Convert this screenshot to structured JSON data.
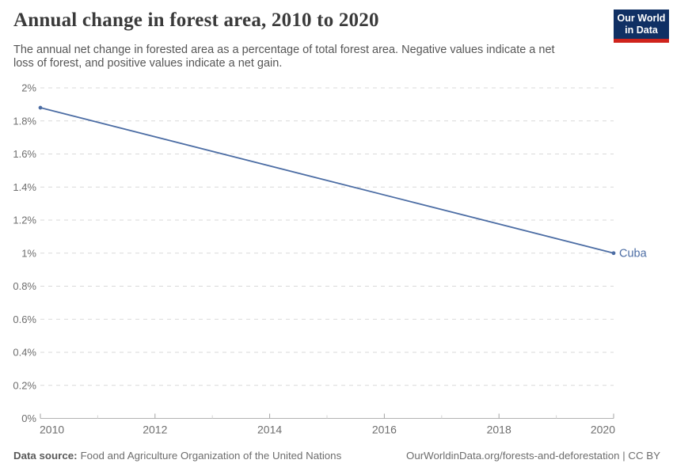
{
  "header": {
    "title": "Annual change in forest area, 2010 to 2020",
    "subtitle_lines": [
      "The annual net change in forested area as a percentage of total forest area. Negative values indicate a net",
      "loss of forest, and positive values indicate a net gain."
    ],
    "logo_lines": [
      "Our World",
      "in Data"
    ],
    "logo_colors": {
      "background": "#103064",
      "bar": "#cf231c",
      "text": "#ffffff"
    }
  },
  "footer": {
    "data_source_label": "Data source:",
    "data_source_value": "Food and Agriculture Organization of the United Nations",
    "credit": "OurWorldinData.org/forests-and-deforestation | CC BY"
  },
  "chart_data": {
    "type": "line",
    "title": "Annual change in forest area, 2010 to 2020",
    "xlabel": "",
    "ylabel": "",
    "unit": "%",
    "xlim": [
      2010,
      2020
    ],
    "ylim": [
      0,
      2
    ],
    "grid": "horizontal-dashed",
    "legend_position": "line-end-label",
    "x_ticks": [
      {
        "value": 2010,
        "label": "2010"
      },
      {
        "value": 2012,
        "label": "2012"
      },
      {
        "value": 2014,
        "label": "2014"
      },
      {
        "value": 2016,
        "label": "2016"
      },
      {
        "value": 2018,
        "label": "2018"
      },
      {
        "value": 2020,
        "label": "2020"
      }
    ],
    "minor_x_ticks": [
      2011,
      2013,
      2015,
      2017,
      2019
    ],
    "y_ticks": [
      {
        "value": 0,
        "label": "0%"
      },
      {
        "value": 0.2,
        "label": "0.2%"
      },
      {
        "value": 0.4,
        "label": "0.4%"
      },
      {
        "value": 0.6,
        "label": "0.6%"
      },
      {
        "value": 0.8,
        "label": "0.8%"
      },
      {
        "value": 1,
        "label": "1%"
      },
      {
        "value": 1.2,
        "label": "1.2%"
      },
      {
        "value": 1.4,
        "label": "1.4%"
      },
      {
        "value": 1.6,
        "label": "1.6%"
      },
      {
        "value": 1.8,
        "label": "1.8%"
      },
      {
        "value": 2,
        "label": "2%"
      }
    ],
    "colors": {
      "gridline": "#d9d9d9",
      "axis_line": "#b3b3b3",
      "tick": "#a3a3a3",
      "minor_tick": "#d4d4d4",
      "tick_label": "#6e6e6e"
    },
    "series": [
      {
        "name": "Cuba",
        "color": "#4c6da4",
        "points": [
          {
            "x": 2010,
            "y": 1.88
          },
          {
            "x": 2020,
            "y": 1.0
          }
        ]
      }
    ]
  }
}
